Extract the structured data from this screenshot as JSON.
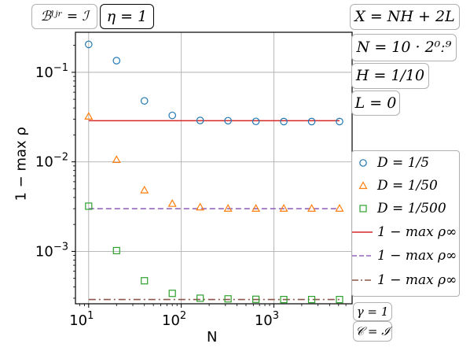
{
  "tags": {
    "b_tag": "ℬˡʲʳ = ℐ",
    "eta_tag": "η = 1",
    "x_tag": "X = NH + 2L",
    "n_tag": "N = 10 · 2⁰ː⁹",
    "h_tag": "H = 1/10",
    "l_tag": "L = 0",
    "gamma_tag": "γ = 1",
    "c_tag": "𝒞 = ℐ"
  },
  "legend": [
    {
      "label": "D = 1/5",
      "marker": "circle",
      "color": "#1f77b4"
    },
    {
      "label": "D = 1/50",
      "marker": "triangle",
      "color": "#ff7f0e"
    },
    {
      "label": "D = 1/500",
      "marker": "square",
      "color": "#2ca02c"
    },
    {
      "label": "1 − max ρ∞",
      "line": "solid",
      "color": "#d62728"
    },
    {
      "label": "1 − max ρ∞",
      "line": "dashed",
      "color": "#9467bd"
    },
    {
      "label": "1 − max ρ∞",
      "line": "dashdot",
      "color": "#8c564b"
    }
  ],
  "chart_data": {
    "type": "scatter",
    "xlabel": "N",
    "ylabel": "1 − max ρ",
    "xscale": "log",
    "yscale": "log",
    "xlim": [
      7.2,
      7000
    ],
    "ylim": [
      0.00026,
      0.28
    ],
    "grid": true,
    "legend_position": "right",
    "x": [
      10,
      20,
      40,
      80,
      160,
      320,
      640,
      1280,
      2560,
      5120
    ],
    "x_ticks": [
      {
        "value": 10,
        "base": "10",
        "exp": "1"
      },
      {
        "value": 100,
        "base": "10",
        "exp": "2"
      },
      {
        "value": 1000,
        "base": "10",
        "exp": "3"
      }
    ],
    "y_ticks": [
      {
        "value": 0.1,
        "base": "10",
        "exp": "−1"
      },
      {
        "value": 0.01,
        "base": "10",
        "exp": "−2"
      },
      {
        "value": 0.001,
        "base": "10",
        "exp": "−3"
      }
    ],
    "series": [
      {
        "name": "D = 1/5",
        "marker": "circle",
        "color": "#1f77b4",
        "values": [
          0.205,
          0.135,
          0.048,
          0.033,
          0.029,
          0.0288,
          0.0283,
          0.0282,
          0.0282,
          0.0282
        ]
      },
      {
        "name": "D = 1/50",
        "marker": "triangle",
        "color": "#ff7f0e",
        "values": [
          0.032,
          0.0105,
          0.0048,
          0.0034,
          0.0031,
          0.003,
          0.003,
          0.003,
          0.003,
          0.003
        ]
      },
      {
        "name": "D = 1/500",
        "marker": "square",
        "color": "#2ca02c",
        "values": [
          0.0032,
          0.00102,
          0.00047,
          0.00034,
          0.0003,
          0.000295,
          0.000292,
          0.00029,
          0.00029,
          0.00029
        ]
      }
    ],
    "reference_lines": [
      {
        "name": "1 − max ρ∞",
        "style": "solid",
        "color": "#d62728",
        "value": 0.0288,
        "x_range": [
          10,
          5120
        ]
      },
      {
        "name": "1 − max ρ∞",
        "style": "dashed",
        "color": "#9467bd",
        "value": 0.003,
        "x_range": [
          10,
          5120
        ]
      },
      {
        "name": "1 − max ρ∞",
        "style": "dashdot",
        "color": "#8c564b",
        "value": 0.00029,
        "x_range": [
          10,
          5120
        ]
      }
    ]
  }
}
